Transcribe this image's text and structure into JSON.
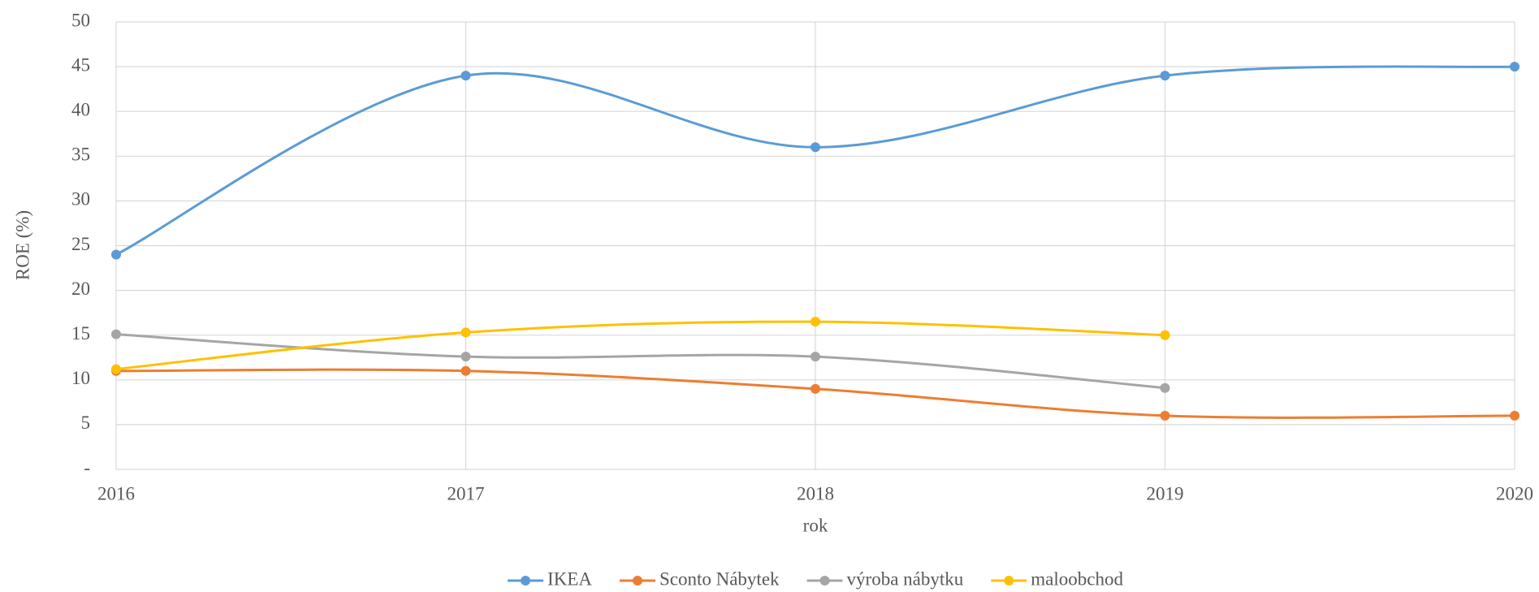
{
  "chart_data": {
    "type": "line",
    "y_label": "ROE (%)",
    "x_label": "rok",
    "x": [
      2016,
      2017,
      2018,
      2019,
      2020
    ],
    "xlim": [
      2016,
      2020
    ],
    "xticks": [
      2016,
      2017,
      2018,
      2019,
      2020
    ],
    "ylim": [
      0,
      50
    ],
    "yticks": [
      {
        "value": 0,
        "label": "-"
      },
      5,
      10,
      15,
      20,
      25,
      30,
      35,
      40,
      45,
      50
    ],
    "grid": true,
    "smooth": true,
    "legend": "bottom",
    "series": [
      {
        "name": "IKEA",
        "color": "#5b9bd5",
        "values": [
          24,
          44,
          36,
          44,
          45
        ]
      },
      {
        "name": "Sconto Nábytek",
        "color": "#ed7d31",
        "values": [
          11,
          11,
          9,
          6,
          6
        ]
      },
      {
        "name": "výroba nábytku",
        "color": "#a5a5a5",
        "values": [
          15.1,
          12.6,
          12.6,
          9.1,
          null
        ]
      },
      {
        "name": "maloobchod",
        "color": "#ffc000",
        "values": [
          11.2,
          15.3,
          16.5,
          15,
          null
        ]
      }
    ]
  }
}
